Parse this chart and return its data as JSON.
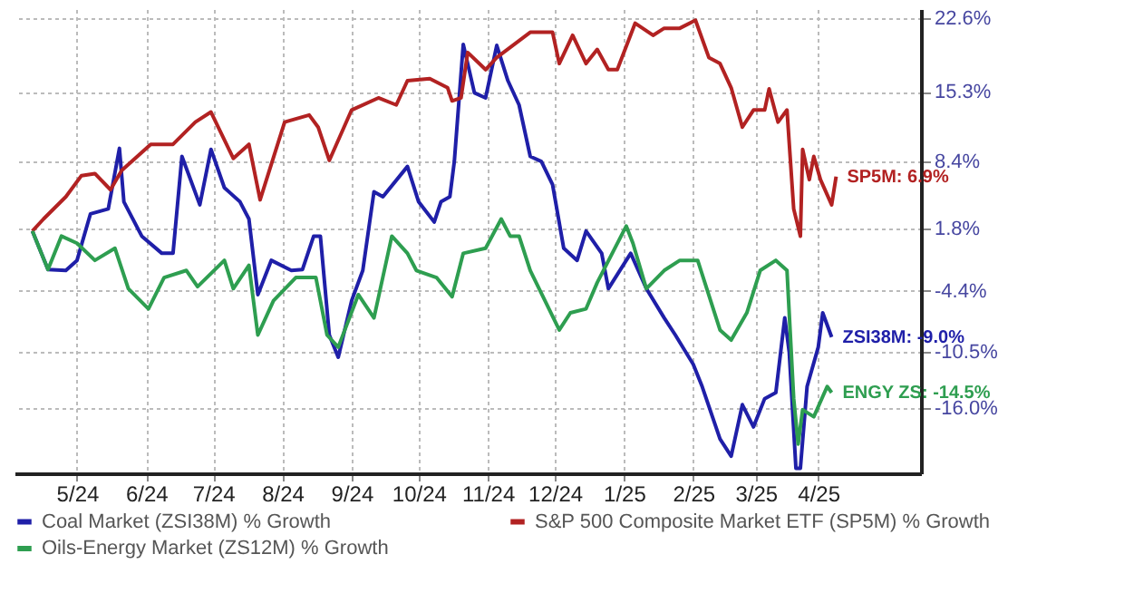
{
  "chart_data": {
    "type": "line",
    "xlim": [
      "2024-04-17",
      "2025-05-28"
    ],
    "ylim": [
      -22.5,
      23.5
    ],
    "xticks": [
      {
        "value": "2024-05-15",
        "label": "5/24"
      },
      {
        "value": "2024-06-15",
        "label": "6/24"
      },
      {
        "value": "2024-07-15",
        "label": "7/24"
      },
      {
        "value": "2024-08-15",
        "label": "8/24"
      },
      {
        "value": "2024-09-15",
        "label": "9/24"
      },
      {
        "value": "2024-10-15",
        "label": "10/24"
      },
      {
        "value": "2024-11-15",
        "label": "11/24"
      },
      {
        "value": "2024-12-15",
        "label": "12/24"
      },
      {
        "value": "2025-01-15",
        "label": "1/25"
      },
      {
        "value": "2025-02-15",
        "label": "2/25"
      },
      {
        "value": "2025-03-15",
        "label": "3/25"
      },
      {
        "value": "2025-04-12",
        "label": "4/25"
      }
    ],
    "yticks": [
      {
        "value": 22.6,
        "label": "22.6%"
      },
      {
        "value": 15.3,
        "label": "15.3%"
      },
      {
        "value": 8.4,
        "label": "8.4%"
      },
      {
        "value": 1.8,
        "label": "1.8%"
      },
      {
        "value": -4.4,
        "label": "-4.4%"
      },
      {
        "value": -10.5,
        "label": "-10.5%"
      },
      {
        "value": -16.0,
        "label": "-16.0%"
      }
    ],
    "grid": true,
    "legend": "bottom",
    "marker": "none",
    "line_style": "solid",
    "series": [
      {
        "name": "Coal Market (ZSI38M) % Growth",
        "color": "#1f1fa8",
        "x": [
          "2024-04-25",
          "2024-05-02",
          "2024-05-10",
          "2024-05-15",
          "2024-05-21",
          "2024-05-29",
          "2024-06-03",
          "2024-06-05",
          "2024-06-13",
          "2024-06-22",
          "2024-06-27",
          "2024-07-01",
          "2024-07-09",
          "2024-07-14",
          "2024-07-20",
          "2024-07-27",
          "2024-07-31",
          "2024-08-04",
          "2024-08-10",
          "2024-08-19",
          "2024-08-24",
          "2024-08-29",
          "2024-09-01",
          "2024-09-05",
          "2024-09-09",
          "2024-09-15",
          "2024-09-20",
          "2024-09-25",
          "2024-09-29",
          "2024-10-10",
          "2024-10-15",
          "2024-10-22",
          "2024-10-25",
          "2024-10-29",
          "2024-10-31",
          "2024-11-04",
          "2024-11-09",
          "2024-11-14",
          "2024-11-19",
          "2024-11-24",
          "2024-11-29",
          "2024-12-04",
          "2024-12-09",
          "2024-12-14",
          "2024-12-19",
          "2024-12-25",
          "2024-12-29",
          "2025-01-05",
          "2025-01-08",
          "2025-01-18",
          "2025-01-25",
          "2025-02-02",
          "2025-02-07",
          "2025-02-15",
          "2025-02-19",
          "2025-02-27",
          "2025-03-04",
          "2025-03-09",
          "2025-03-14",
          "2025-03-19",
          "2025-03-24",
          "2025-03-28",
          "2025-03-30",
          "2025-04-02",
          "2025-04-04",
          "2025-04-07",
          "2025-04-12",
          "2025-04-14",
          "2025-04-18"
        ],
        "values": [
          1.5,
          -2.3,
          -2.4,
          -1.4,
          3.2,
          3.7,
          9.7,
          4.4,
          1.0,
          -0.7,
          -0.7,
          8.9,
          4.1,
          9.6,
          5.8,
          4.4,
          2.7,
          -4.8,
          -1.4,
          -2.4,
          -2.3,
          1.0,
          1.0,
          -8.8,
          -11.0,
          -5.4,
          -2.4,
          5.4,
          4.9,
          7.9,
          4.4,
          2.4,
          4.4,
          4.9,
          8.4,
          20.0,
          15.2,
          14.7,
          19.9,
          16.4,
          14.0,
          8.9,
          8.4,
          6.1,
          -0.2,
          -1.4,
          1.5,
          -0.7,
          -4.2,
          -0.7,
          -4.2,
          -7.1,
          -8.8,
          -11.7,
          -13.9,
          -19.1,
          -20.8,
          -15.7,
          -17.9,
          -15.1,
          -14.5,
          -7.1,
          -10.5,
          -22.0,
          -22.0,
          -13.9,
          -10.0,
          -6.6,
          -9.0
        ]
      },
      {
        "name": "S&P 500 Composite Market ETF (SP5M) % Growth",
        "color": "#b22222",
        "x": [
          "2024-04-25",
          "2024-04-30",
          "2024-05-10",
          "2024-05-17",
          "2024-05-23",
          "2024-05-30",
          "2024-06-04",
          "2024-06-17",
          "2024-06-27",
          "2024-07-07",
          "2024-07-14",
          "2024-07-24",
          "2024-07-31",
          "2024-08-05",
          "2024-08-16",
          "2024-08-27",
          "2024-08-31",
          "2024-09-05",
          "2024-09-15",
          "2024-09-27",
          "2024-10-05",
          "2024-10-10",
          "2024-10-20",
          "2024-10-28",
          "2024-10-30",
          "2024-11-03",
          "2024-11-06",
          "2024-11-14",
          "2024-11-19",
          "2024-11-22",
          "2024-12-04",
          "2024-12-14",
          "2024-12-17",
          "2024-12-23",
          "2024-12-29",
          "2025-01-03",
          "2025-01-08",
          "2025-01-12",
          "2025-01-20",
          "2025-01-28",
          "2025-02-02",
          "2025-02-09",
          "2025-02-16",
          "2025-02-22",
          "2025-02-27",
          "2025-03-04",
          "2025-03-09",
          "2025-03-14",
          "2025-03-19",
          "2025-03-21",
          "2025-03-25",
          "2025-03-29",
          "2025-04-01",
          "2025-04-04",
          "2025-04-05",
          "2025-04-08",
          "2025-04-10",
          "2025-04-13",
          "2025-04-18",
          "2025-04-20"
        ],
        "values": [
          1.5,
          2.7,
          4.9,
          7.0,
          7.2,
          5.6,
          7.5,
          10.1,
          10.1,
          12.3,
          13.3,
          8.7,
          10.1,
          4.6,
          12.3,
          13.0,
          11.8,
          8.5,
          13.5,
          14.7,
          14.0,
          16.4,
          16.6,
          15.7,
          14.4,
          14.7,
          19.2,
          17.5,
          18.7,
          19.2,
          21.2,
          21.2,
          18.1,
          20.9,
          18.1,
          19.5,
          17.5,
          17.5,
          22.1,
          20.9,
          21.6,
          21.6,
          22.4,
          18.7,
          18.1,
          15.7,
          11.8,
          13.5,
          13.5,
          15.6,
          12.3,
          13.5,
          3.7,
          1.0,
          9.6,
          6.6,
          8.9,
          6.6,
          4.1,
          6.9
        ]
      },
      {
        "name": "Oils-Energy Market (ZS12M) % Growth",
        "color": "#2e9e50",
        "x": [
          "2024-04-25",
          "2024-05-02",
          "2024-05-08",
          "2024-05-15",
          "2024-05-23",
          "2024-06-01",
          "2024-06-07",
          "2024-06-16",
          "2024-06-23",
          "2024-07-03",
          "2024-07-08",
          "2024-07-20",
          "2024-07-24",
          "2024-07-31",
          "2024-08-04",
          "2024-08-11",
          "2024-08-21",
          "2024-08-30",
          "2024-09-04",
          "2024-09-09",
          "2024-09-18",
          "2024-09-25",
          "2024-10-03",
          "2024-10-10",
          "2024-10-14",
          "2024-10-23",
          "2024-10-30",
          "2024-11-04",
          "2024-11-14",
          "2024-11-21",
          "2024-11-25",
          "2024-11-29",
          "2024-12-04",
          "2024-12-17",
          "2024-12-22",
          "2024-12-29",
          "2025-01-03",
          "2025-01-16",
          "2025-01-19",
          "2025-01-25",
          "2025-02-02",
          "2025-02-09",
          "2025-02-17",
          "2025-02-27",
          "2025-03-04",
          "2025-03-11",
          "2025-03-17",
          "2025-03-24",
          "2025-03-29",
          "2025-04-01",
          "2025-04-03",
          "2025-04-05",
          "2025-04-10",
          "2025-04-16",
          "2025-04-18"
        ],
        "values": [
          1.5,
          -2.3,
          1.0,
          0.3,
          -1.4,
          -0.2,
          -4.2,
          -6.2,
          -3.1,
          -2.4,
          -4.0,
          -1.4,
          -4.2,
          -1.9,
          -8.8,
          -5.4,
          -3.1,
          -3.1,
          -8.8,
          -10.0,
          -4.8,
          -7.1,
          1.0,
          -0.7,
          -2.4,
          -3.1,
          -5.0,
          -0.7,
          -0.2,
          2.7,
          1.0,
          1.0,
          -2.4,
          -8.3,
          -6.6,
          -6.2,
          -3.6,
          2.0,
          0.3,
          -4.2,
          -2.4,
          -1.4,
          -1.4,
          -8.3,
          -9.3,
          -6.6,
          -2.4,
          -1.4,
          -2.4,
          -15.1,
          -19.6,
          -16.2,
          -16.9,
          -13.9,
          -14.5
        ]
      }
    ],
    "annotations": [
      {
        "text": "ZSI38M: -9.0%",
        "x": "2025-04-18",
        "y": -9.0
      },
      {
        "text": "SP5M: 6.9%",
        "x": "2025-04-20",
        "y": 6.9
      },
      {
        "text": "ENGY ZS: -14.5%",
        "x": "2025-04-18",
        "y": -14.5
      }
    ]
  }
}
